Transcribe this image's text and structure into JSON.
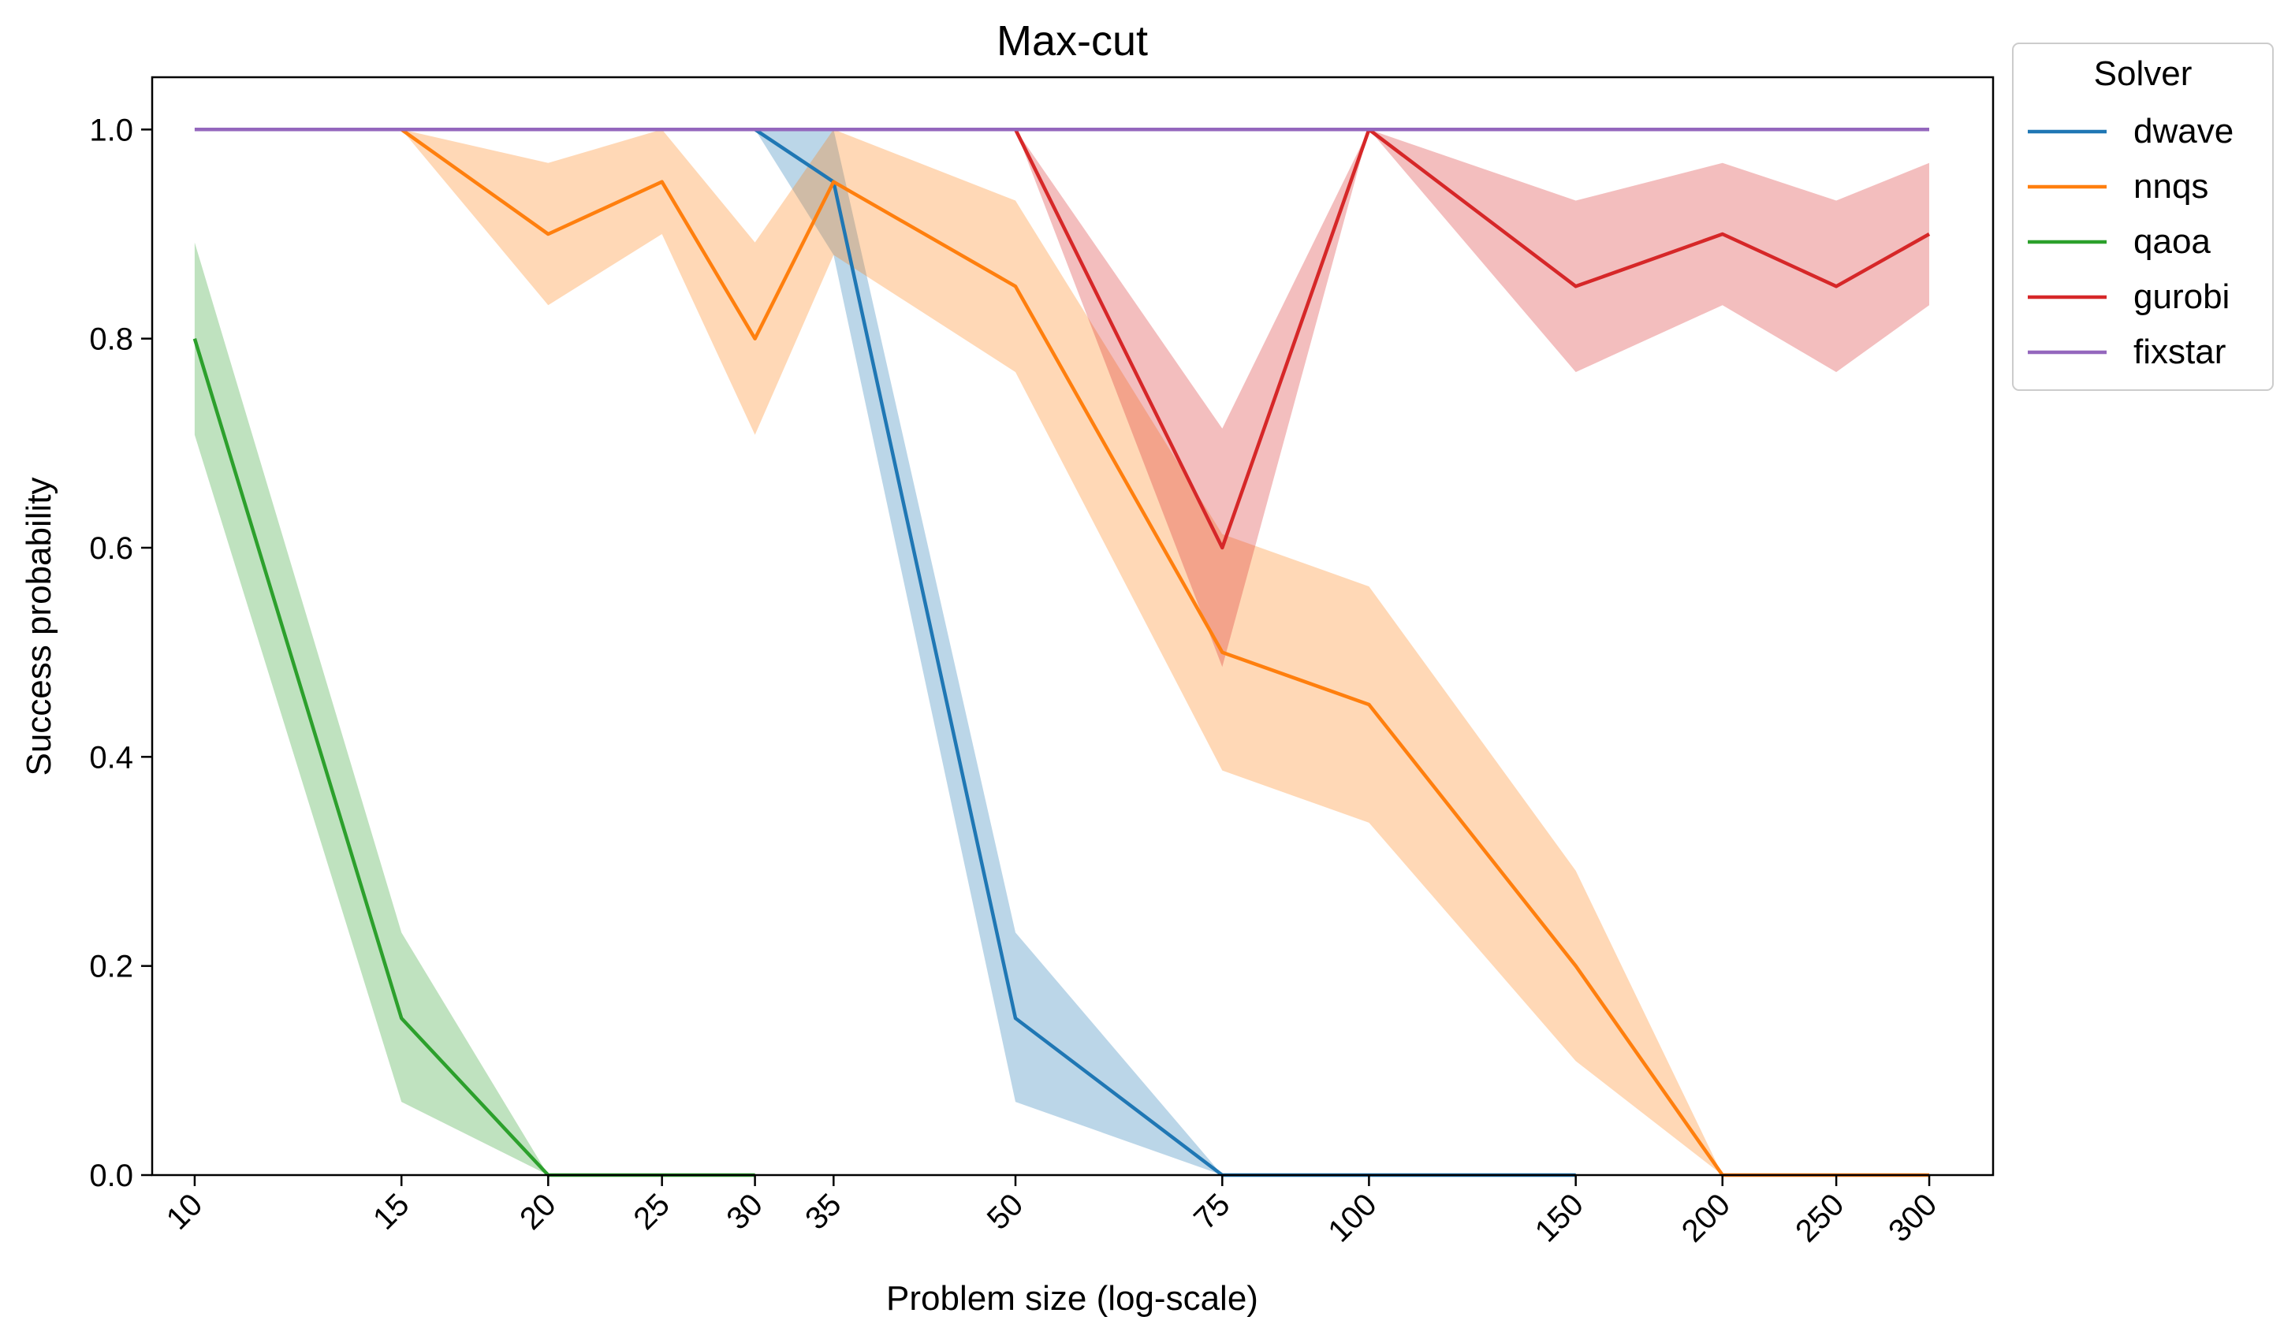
{
  "chart_data": {
    "type": "line",
    "title": "Max-cut",
    "xlabel": "Problem size (log-scale)",
    "ylabel": "Success probability",
    "xscale": "log",
    "xlim": [
      9.2,
      340
    ],
    "ylim": [
      0.0,
      1.05
    ],
    "xticks": [
      10,
      15,
      20,
      25,
      30,
      35,
      50,
      75,
      100,
      150,
      200,
      250,
      300
    ],
    "xtick_labels": [
      "10",
      "15",
      "20",
      "25",
      "30",
      "35",
      "50",
      "75",
      "100",
      "150",
      "200",
      "250",
      "300"
    ],
    "yticks": [
      0.0,
      0.2,
      0.4,
      0.6,
      0.8,
      1.0
    ],
    "ytick_labels": [
      "0.0",
      "0.2",
      "0.4",
      "0.6",
      "0.8",
      "1.0"
    ],
    "grid": false,
    "legend": {
      "title": "Solver",
      "placement": "outside-top-right"
    },
    "series": [
      {
        "name": "dwave",
        "color": "#1f77b4",
        "x": [
          30,
          35,
          50,
          75,
          100,
          150
        ],
        "y": [
          1.0,
          0.95,
          0.15,
          0.0,
          0.0,
          0.0
        ],
        "lower": [
          1.0,
          0.88,
          0.07,
          0.0,
          0.0,
          0.0
        ],
        "upper": [
          1.0,
          1.0,
          0.232,
          0.0,
          0.0,
          0.0
        ]
      },
      {
        "name": "nnqs",
        "color": "#ff7f0e",
        "x": [
          15,
          20,
          25,
          30,
          35,
          50,
          75,
          100,
          150,
          200,
          250,
          300
        ],
        "y": [
          1.0,
          0.9,
          0.95,
          0.8,
          0.95,
          0.85,
          0.5,
          0.45,
          0.2,
          0.0,
          0.0,
          0.0
        ],
        "lower": [
          1.0,
          0.832,
          0.9,
          0.708,
          0.88,
          0.768,
          0.387,
          0.337,
          0.109,
          0.0,
          0.0,
          0.0
        ],
        "upper": [
          1.0,
          0.968,
          1.0,
          0.892,
          1.0,
          0.932,
          0.613,
          0.563,
          0.291,
          0.0,
          0.0,
          0.0
        ]
      },
      {
        "name": "qaoa",
        "color": "#2ca02c",
        "x": [
          10,
          15,
          20,
          25,
          30
        ],
        "y": [
          0.8,
          0.15,
          0.0,
          0.0,
          0.0
        ],
        "lower": [
          0.708,
          0.07,
          0.0,
          0.0,
          0.0
        ],
        "upper": [
          0.892,
          0.232,
          0.0,
          0.0,
          0.0
        ]
      },
      {
        "name": "gurobi",
        "color": "#d62728",
        "x": [
          50,
          75,
          100,
          150,
          200,
          250,
          300
        ],
        "y": [
          1.0,
          0.6,
          1.0,
          0.85,
          0.9,
          0.85,
          0.9
        ],
        "lower": [
          1.0,
          0.486,
          1.0,
          0.768,
          0.832,
          0.768,
          0.832
        ],
        "upper": [
          1.0,
          0.714,
          1.0,
          0.932,
          0.968,
          0.932,
          0.968
        ]
      },
      {
        "name": "fixstar",
        "color": "#9467bd",
        "x": [
          10,
          15,
          20,
          25,
          30,
          35,
          50,
          75,
          100,
          150,
          200,
          250,
          300
        ],
        "y": [
          1.0,
          1.0,
          1.0,
          1.0,
          1.0,
          1.0,
          1.0,
          1.0,
          1.0,
          1.0,
          1.0,
          1.0,
          1.0
        ],
        "lower": [
          1.0,
          1.0,
          1.0,
          1.0,
          1.0,
          1.0,
          1.0,
          1.0,
          1.0,
          1.0,
          1.0,
          1.0,
          1.0
        ],
        "upper": [
          1.0,
          1.0,
          1.0,
          1.0,
          1.0,
          1.0,
          1.0,
          1.0,
          1.0,
          1.0,
          1.0,
          1.0,
          1.0
        ]
      }
    ]
  }
}
